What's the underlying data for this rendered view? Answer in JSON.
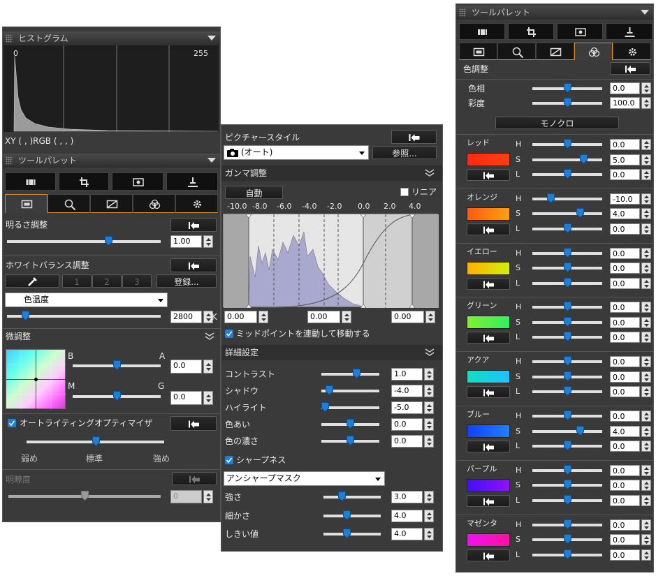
{
  "histogram": {
    "title": "ヒストグラム",
    "min_label": "0",
    "max_label": "255",
    "readout": "XY (    ,    )RGB (    ,    ,    )"
  },
  "left_palette": {
    "title": "ツールパレット",
    "brightness": {
      "label": "明るさ調整",
      "value": "1.00"
    },
    "white_balance": {
      "label": "ホワイトバランス調整",
      "presets": [
        "1",
        "2",
        "3"
      ],
      "register": "登録...",
      "mode": "色温度",
      "value": "2800",
      "unit": "K"
    },
    "fine_tune": {
      "label": "微調整",
      "b": "B",
      "a": "A",
      "m": "M",
      "g": "G",
      "values": [
        "0.0",
        "0.0"
      ]
    },
    "alo": {
      "label": "オートライティングオプティマイザ",
      "levels": [
        "弱め",
        "標準",
        "強め"
      ]
    },
    "clarity": {
      "label": "明瞭度",
      "value": "0"
    }
  },
  "picture_style": {
    "label": "ピクチャースタイル",
    "selected": "(オート)",
    "browse": "参照..."
  },
  "gamma": {
    "label": "ガンマ調整",
    "auto": "自動",
    "linear": "リニア",
    "scale": [
      "-10.0",
      "-8.0",
      "-6.0",
      "-4.0",
      "-2.0",
      "0.0",
      "2.0",
      "4.0"
    ],
    "values": [
      "0.00",
      "0.00",
      "0.00"
    ],
    "link_midpoint": "ミッドポイントを連動して移動する"
  },
  "detail": {
    "label": "詳細設定",
    "rows": [
      {
        "label": "コントラスト",
        "value": "1.0"
      },
      {
        "label": "シャドウ",
        "value": "-4.0"
      },
      {
        "label": "ハイライト",
        "value": "-5.0"
      },
      {
        "label": "色あい",
        "value": "0.0"
      },
      {
        "label": "色の濃さ",
        "value": "0.0"
      }
    ],
    "sharpness": "シャープネス",
    "sharpness_mode": "アンシャープマスク",
    "sharpness_rows": [
      {
        "label": "強さ",
        "value": "3.0"
      },
      {
        "label": "細かさ",
        "value": "4.0"
      },
      {
        "label": "しきい値",
        "value": "4.0"
      }
    ]
  },
  "right_palette": {
    "title": "ツールパレット",
    "color_adjust": "色調整",
    "rows": [
      {
        "label": "色相",
        "value": "0.0"
      },
      {
        "label": "彩度",
        "value": "100.0"
      }
    ],
    "monochrome": "モノクロ",
    "channel_keys": [
      "H",
      "S",
      "L"
    ],
    "colors": [
      {
        "name": "レッド",
        "values": [
          "0.0",
          "5.0",
          "0.0"
        ]
      },
      {
        "name": "オレンジ",
        "values": [
          "-10.0",
          "4.0",
          "0.0"
        ]
      },
      {
        "name": "イエロー",
        "values": [
          "0.0",
          "0.0",
          "0.0"
        ]
      },
      {
        "name": "グリーン",
        "values": [
          "0.0",
          "0.0",
          "0.0"
        ]
      },
      {
        "name": "アクア",
        "values": [
          "0.0",
          "0.0",
          "0.0"
        ]
      },
      {
        "name": "ブルー",
        "values": [
          "0.0",
          "4.0",
          "0.0"
        ]
      },
      {
        "name": "パープル",
        "values": [
          "0.0",
          "0.0",
          "0.0"
        ]
      },
      {
        "name": "マゼンタ",
        "values": [
          "0.0",
          "0.0",
          "0.0"
        ]
      }
    ]
  }
}
